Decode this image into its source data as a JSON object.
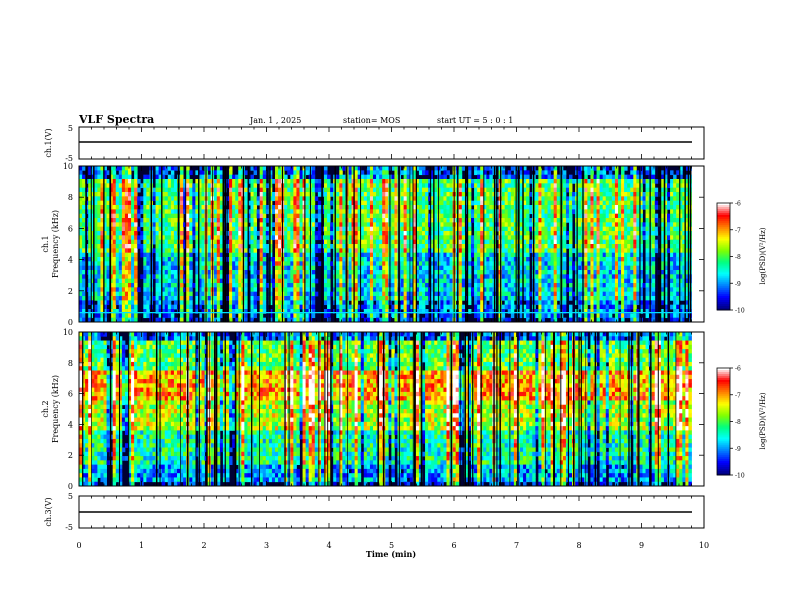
{
  "header": {
    "title": "VLF Spectra",
    "date": "Jan. 1 , 2025",
    "station": "station= MOS",
    "start_ut": "start UT = 5 : 0 : 1"
  },
  "chart_data": [
    {
      "id": "ch1-voltage",
      "type": "line",
      "ylabel": "ch.1(V)",
      "ylim": [
        -5,
        5
      ],
      "yticks": [
        "5",
        "-5"
      ],
      "xlim": [
        0,
        10
      ],
      "series": [
        {
          "x": [
            0,
            9.8
          ],
          "y": [
            0,
            0
          ]
        }
      ]
    },
    {
      "id": "ch1-spectrogram",
      "type": "heatmap",
      "ylabel": "ch.1 Frequency (kHz)",
      "ylim": [
        0,
        10
      ],
      "yticks": [
        "0",
        "2",
        "4",
        "6",
        "8",
        "10"
      ],
      "xlim": [
        0,
        10
      ],
      "data_extent_min": 9.8,
      "colorbar": {
        "label": "log(PSD)(V²/Hz)",
        "range": [
          -10,
          -6
        ],
        "ticks": [
          "-6",
          "-7",
          "-8",
          "-9",
          "-10"
        ]
      }
    },
    {
      "id": "ch2-spectrogram",
      "type": "heatmap",
      "ylabel": "ch.2 Frequency (kHz)",
      "ylim": [
        0,
        10
      ],
      "yticks": [
        "0",
        "2",
        "4",
        "6",
        "8",
        "10"
      ],
      "xlim": [
        0,
        10
      ],
      "data_extent_min": 9.8,
      "colorbar": {
        "label": "log(PSD)(V²/Hz)",
        "range": [
          -10,
          -6
        ],
        "ticks": [
          "-6",
          "-7",
          "-8",
          "-9",
          "-10"
        ]
      }
    },
    {
      "id": "ch3-voltage",
      "type": "line",
      "ylabel": "ch.3(V)",
      "ylim": [
        -5,
        5
      ],
      "yticks": [
        "5",
        "-5"
      ],
      "xlim": [
        0,
        10
      ],
      "series": [
        {
          "x": [
            0,
            9.8
          ],
          "y": [
            0,
            0
          ]
        }
      ]
    }
  ],
  "x_axis": {
    "label": "Time (min)",
    "ticks": [
      "0",
      "1",
      "2",
      "3",
      "4",
      "5",
      "6",
      "7",
      "8",
      "9",
      "10"
    ]
  },
  "colormap": [
    "#000080",
    "#0000ff",
    "#0080ff",
    "#00ffff",
    "#00ff80",
    "#80ff00",
    "#ffff00",
    "#ff8000",
    "#ff0000",
    "#ffffff"
  ]
}
